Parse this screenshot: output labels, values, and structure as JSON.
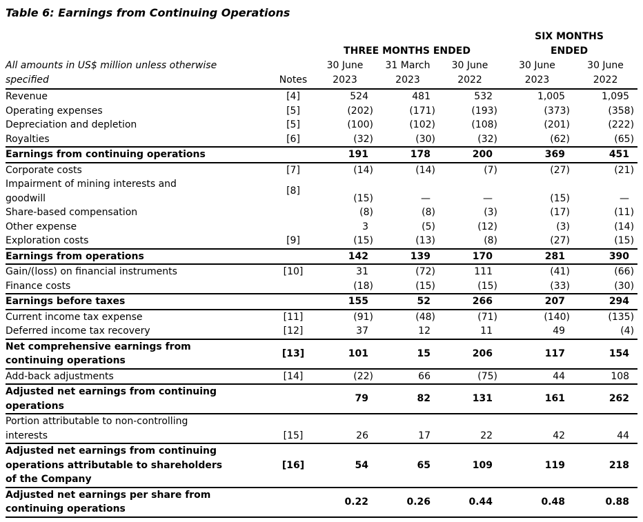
{
  "title": "Table 6: Earnings from Continuing Operations",
  "header": {
    "subtitle": "All amounts in US$ million unless otherwise\nspecified",
    "notes_label": "Notes",
    "group_three_months": "THREE MONTHS ENDED",
    "group_six_months": "SIX MONTHS\nENDED",
    "columns": [
      "30 June\n2023",
      "31 March\n2023",
      "30 June\n2022",
      "30 June\n2023",
      "30 June\n2022"
    ]
  },
  "rows": [
    {
      "label": "Revenue",
      "note": "[4]",
      "bold": false,
      "values": [
        "524",
        "481",
        "532",
        "1,005",
        "1,095"
      ]
    },
    {
      "label": "Operating expenses",
      "note": "[5]",
      "bold": false,
      "values": [
        "(202)",
        "(171)",
        "(193)",
        "(373)",
        "(358)"
      ]
    },
    {
      "label": "Depreciation and depletion",
      "note": "[5]",
      "bold": false,
      "values": [
        "(100)",
        "(102)",
        "(108)",
        "(201)",
        "(222)"
      ]
    },
    {
      "label": "Royalties",
      "note": "[6]",
      "bold": false,
      "values": [
        "(32)",
        "(30)",
        "(32)",
        "(62)",
        "(65)"
      ]
    },
    {
      "label": "Earnings from continuing operations",
      "note": "",
      "bold": true,
      "values": [
        "191",
        "178",
        "200",
        "369",
        "451"
      ]
    },
    {
      "label": "Corporate costs",
      "note": "[7]",
      "bold": false,
      "values": [
        "(14)",
        "(14)",
        "(7)",
        "(27)",
        "(21)"
      ]
    },
    {
      "label": "Impairment of mining interests and\ngoodwill",
      "note": "[8]",
      "bold": false,
      "values": [
        "(15)",
        "—",
        "—",
        "(15)",
        "—"
      ]
    },
    {
      "label": "Share-based compensation",
      "note": "",
      "bold": false,
      "values": [
        "(8)",
        "(8)",
        "(3)",
        "(17)",
        "(11)"
      ]
    },
    {
      "label": "Other expense",
      "note": "",
      "bold": false,
      "values": [
        "3",
        "(5)",
        "(12)",
        "(3)",
        "(14)"
      ]
    },
    {
      "label": "Exploration costs",
      "note": "[9]",
      "bold": false,
      "values": [
        "(15)",
        "(13)",
        "(8)",
        "(27)",
        "(15)"
      ]
    },
    {
      "label": "Earnings from operations",
      "note": "",
      "bold": true,
      "values": [
        "142",
        "139",
        "170",
        "281",
        "390"
      ]
    },
    {
      "label": "Gain/(loss) on financial instruments",
      "note": "[10]",
      "bold": false,
      "values": [
        "31",
        "(72)",
        "111",
        "(41)",
        "(66)"
      ]
    },
    {
      "label": "Finance costs",
      "note": "",
      "bold": false,
      "values": [
        "(18)",
        "(15)",
        "(15)",
        "(33)",
        "(30)"
      ]
    },
    {
      "label": "Earnings before taxes",
      "note": "",
      "bold": true,
      "values": [
        "155",
        "52",
        "266",
        "207",
        "294"
      ]
    },
    {
      "label": "Current income tax expense",
      "note": "[11]",
      "bold": false,
      "values": [
        "(91)",
        "(48)",
        "(71)",
        "(140)",
        "(135)"
      ]
    },
    {
      "label": "Deferred income tax recovery",
      "note": "[12]",
      "bold": false,
      "values": [
        "37",
        "12",
        "11",
        "49",
        "(4)"
      ]
    },
    {
      "label": "Net comprehensive earnings from\ncontinuing operations",
      "note": "[13]",
      "bold": true,
      "values": [
        "101",
        "15",
        "206",
        "117",
        "154"
      ]
    },
    {
      "label": "Add-back adjustments",
      "note": "[14]",
      "bold": false,
      "values": [
        "(22)",
        "66",
        "(75)",
        "44",
        "108"
      ]
    },
    {
      "label": "Adjusted net earnings from continuing\noperations",
      "note": "",
      "bold": true,
      "values": [
        "79",
        "82",
        "131",
        "161",
        "262"
      ]
    },
    {
      "label": "Portion attributable to non-controlling\ninterests",
      "note": "[15]",
      "bold": false,
      "values": [
        "26",
        "17",
        "22",
        "42",
        "44"
      ]
    },
    {
      "label": "Adjusted net earnings from continuing\noperations attributable to shareholders\nof the Company",
      "note": "[16]",
      "bold": true,
      "values": [
        "54",
        "65",
        "109",
        "119",
        "218"
      ]
    },
    {
      "label": "Adjusted net earnings per share from\ncontinuing operations",
      "note": "",
      "bold": true,
      "values": [
        "0.22",
        "0.26",
        "0.44",
        "0.48",
        "0.88"
      ]
    }
  ]
}
